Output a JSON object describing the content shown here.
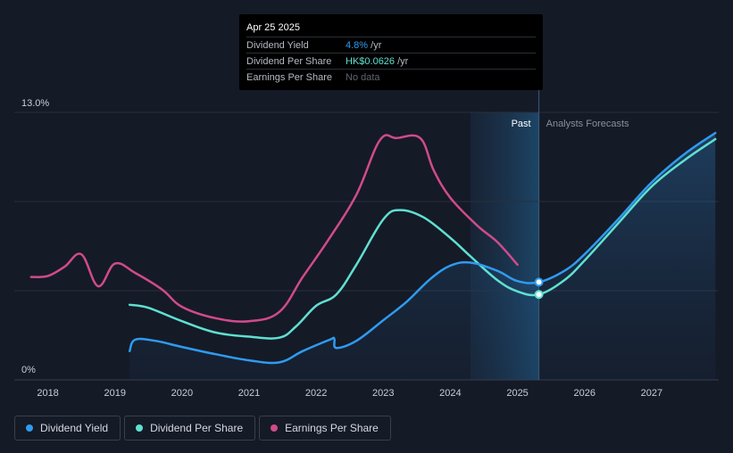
{
  "tooltip": {
    "date": "Apr 25 2025",
    "rows": [
      {
        "label": "Dividend Yield",
        "value_hl": "4.8%",
        "value_rest": " /yr"
      },
      {
        "label": "Dividend Per Share",
        "value_hl": "HK$0.0626",
        "value_rest": " /yr"
      },
      {
        "label": "Earnings Per Share",
        "value": "No data"
      }
    ]
  },
  "legend": [
    {
      "label": "Dividend Yield",
      "color": "#2f9bef"
    },
    {
      "label": "Dividend Per Share",
      "color": "#5fe0d2"
    },
    {
      "label": "Earnings Per Share",
      "color": "#d04b8a"
    }
  ],
  "chart_data": {
    "type": "line",
    "y_tick_labels": [
      "13.0%",
      "0%"
    ],
    "ylim": [
      0,
      13.0
    ],
    "xlim": [
      2017.5,
      2028.0
    ],
    "x_tick_labels": [
      "2018",
      "2019",
      "2020",
      "2021",
      "2022",
      "2023",
      "2024",
      "2025",
      "2026",
      "2027"
    ],
    "region_labels": {
      "past": "Past",
      "forecast": "Analysts Forecasts"
    },
    "past_region": [
      2024.3,
      2025.32
    ],
    "cursor_x": 2025.32,
    "series": [
      {
        "name": "Dividend Yield",
        "color": "#2f9bef",
        "area": true,
        "points": [
          [
            2019.22,
            1.4
          ],
          [
            2019.3,
            1.95
          ],
          [
            2019.6,
            1.9
          ],
          [
            2020.0,
            1.6
          ],
          [
            2020.5,
            1.25
          ],
          [
            2021.0,
            0.95
          ],
          [
            2021.45,
            0.85
          ],
          [
            2021.8,
            1.4
          ],
          [
            2022.2,
            1.95
          ],
          [
            2022.27,
            2.0
          ],
          [
            2022.3,
            1.55
          ],
          [
            2022.6,
            1.9
          ],
          [
            2023.0,
            2.9
          ],
          [
            2023.35,
            3.8
          ],
          [
            2023.7,
            4.9
          ],
          [
            2024.0,
            5.55
          ],
          [
            2024.3,
            5.7
          ],
          [
            2024.7,
            5.3
          ],
          [
            2025.0,
            4.8
          ],
          [
            2025.32,
            4.75
          ],
          [
            2025.7,
            5.3
          ],
          [
            2026.0,
            6.1
          ],
          [
            2026.5,
            7.8
          ],
          [
            2027.0,
            9.6
          ],
          [
            2027.5,
            11.0
          ],
          [
            2027.95,
            12.0
          ]
        ]
      },
      {
        "name": "Dividend Per Share",
        "color": "#5fe0d2",
        "area": false,
        "points": [
          [
            2019.22,
            3.65
          ],
          [
            2019.5,
            3.5
          ],
          [
            2020.0,
            2.85
          ],
          [
            2020.5,
            2.3
          ],
          [
            2021.0,
            2.1
          ],
          [
            2021.45,
            2.05
          ],
          [
            2021.7,
            2.6
          ],
          [
            2022.0,
            3.6
          ],
          [
            2022.3,
            4.15
          ],
          [
            2022.6,
            5.6
          ],
          [
            2023.0,
            7.8
          ],
          [
            2023.25,
            8.25
          ],
          [
            2023.6,
            7.9
          ],
          [
            2024.0,
            6.9
          ],
          [
            2024.3,
            6.0
          ],
          [
            2024.7,
            4.85
          ],
          [
            2025.0,
            4.3
          ],
          [
            2025.32,
            4.15
          ],
          [
            2025.7,
            4.85
          ],
          [
            2026.0,
            5.8
          ],
          [
            2026.5,
            7.6
          ],
          [
            2027.0,
            9.4
          ],
          [
            2027.5,
            10.7
          ],
          [
            2027.95,
            11.7
          ]
        ]
      },
      {
        "name": "Earnings Per Share",
        "color": "#d04b8a",
        "area": false,
        "points": [
          [
            2017.75,
            5.0
          ],
          [
            2018.0,
            5.05
          ],
          [
            2018.25,
            5.5
          ],
          [
            2018.5,
            6.1
          ],
          [
            2018.75,
            4.55
          ],
          [
            2019.0,
            5.65
          ],
          [
            2019.3,
            5.2
          ],
          [
            2019.7,
            4.4
          ],
          [
            2020.0,
            3.55
          ],
          [
            2020.5,
            3.0
          ],
          [
            2021.0,
            2.85
          ],
          [
            2021.45,
            3.3
          ],
          [
            2021.8,
            5.0
          ],
          [
            2022.2,
            6.9
          ],
          [
            2022.6,
            9.0
          ],
          [
            2022.95,
            11.65
          ],
          [
            2023.2,
            11.75
          ],
          [
            2023.55,
            11.75
          ],
          [
            2023.75,
            10.2
          ],
          [
            2024.0,
            8.85
          ],
          [
            2024.4,
            7.5
          ],
          [
            2024.7,
            6.7
          ],
          [
            2025.0,
            5.6
          ]
        ]
      }
    ]
  }
}
